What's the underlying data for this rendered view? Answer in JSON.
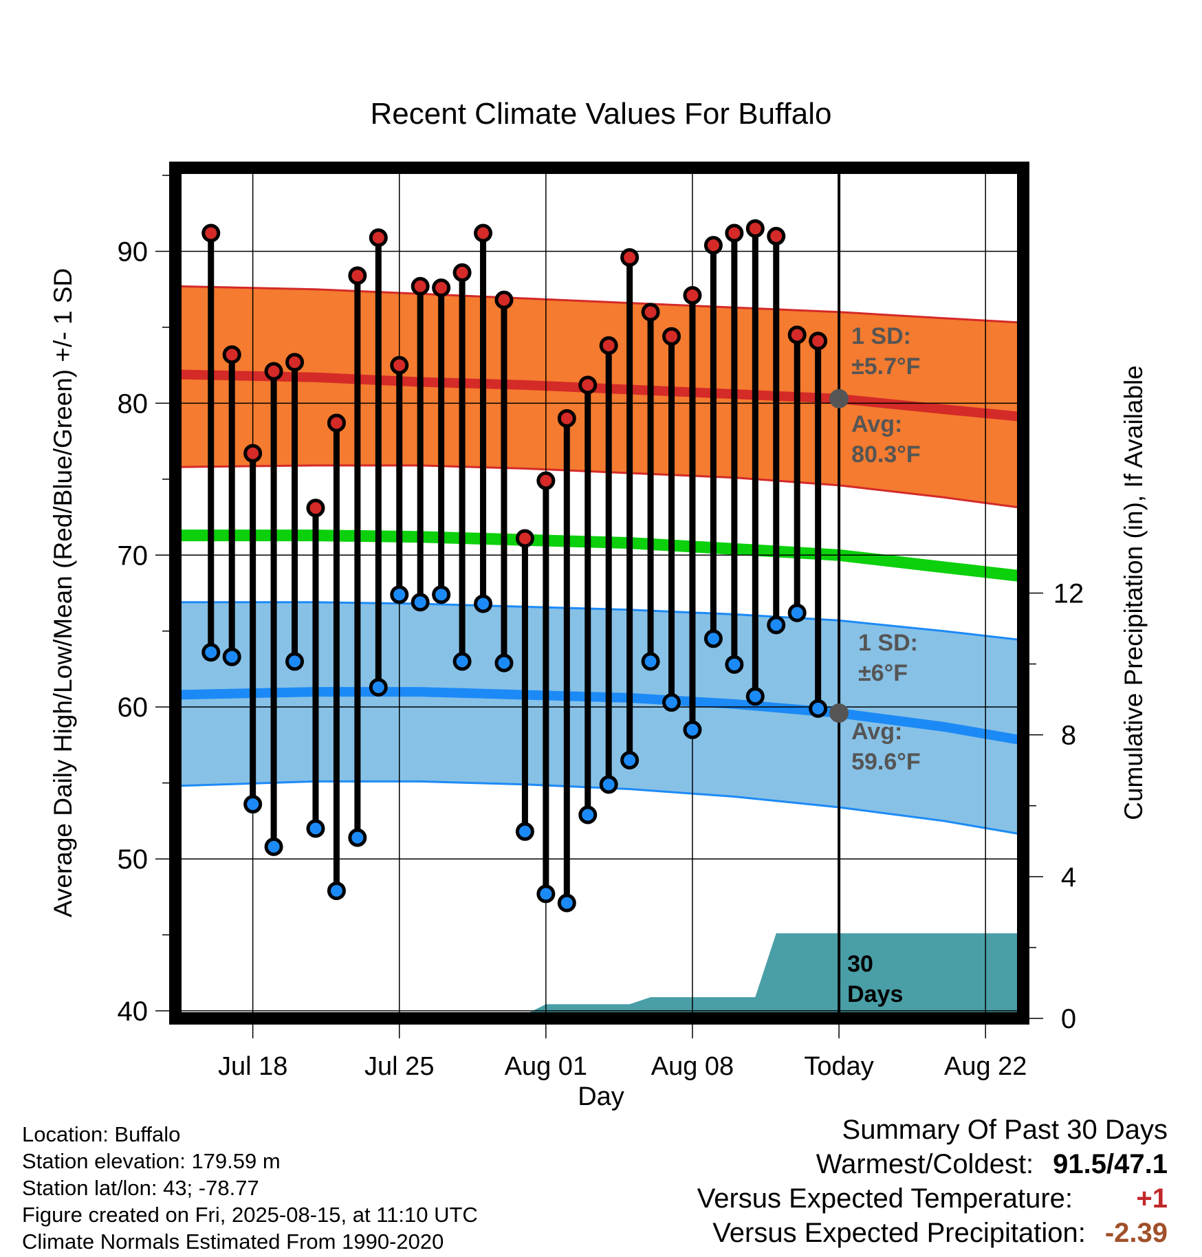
{
  "chart_data": {
    "type": "line",
    "title": "Recent Climate Values For Buffalo",
    "xlabel": "Day",
    "ylabel": "Average Daily High/Low/Mean (Red/Blue/Green) +/- 1 SD",
    "y2label": "Cumulative Precipitation (in), If Available",
    "x_tick_labels": [
      "Jul 18",
      "Jul 25",
      "Aug 01",
      "Aug 08",
      "Today",
      "Aug 22"
    ],
    "x_tick_days": [
      2,
      9,
      16,
      23,
      30,
      37
    ],
    "xlim_days": [
      -1.7,
      38.8
    ],
    "ylim": [
      39.5,
      95.5
    ],
    "y_ticks": [
      40,
      50,
      60,
      70,
      80,
      90
    ],
    "y2lim": [
      0,
      24
    ],
    "y2_ticks": [
      0,
      4,
      8,
      12
    ],
    "today_day": 30,
    "grid": true,
    "daily_highs": [
      91.2,
      83.2,
      76.7,
      82.1,
      82.7,
      73.1,
      78.7,
      88.4,
      90.9,
      82.5,
      87.7,
      87.6,
      88.6,
      91.2,
      86.8,
      71.1,
      74.9,
      79.0,
      81.2,
      83.8,
      89.6,
      86.0,
      84.4,
      87.1,
      90.4,
      91.2,
      91.5,
      91.0,
      84.5,
      84.1
    ],
    "daily_lows": [
      63.6,
      63.3,
      53.6,
      50.8,
      63.0,
      52.0,
      47.9,
      51.4,
      61.3,
      67.4,
      66.9,
      67.4,
      63.0,
      66.8,
      62.9,
      51.8,
      47.7,
      47.1,
      52.9,
      54.9,
      56.5,
      63.0,
      60.3,
      58.5,
      64.5,
      62.8,
      60.7,
      65.4,
      66.2,
      59.9
    ],
    "normal_high": {
      "days": [
        -1.7,
        5,
        10,
        15,
        20,
        25,
        30,
        35,
        38.8
      ],
      "values": [
        81.9,
        81.7,
        81.4,
        81.2,
        80.9,
        80.6,
        80.3,
        79.6,
        79.1
      ]
    },
    "normal_high_upper": {
      "days": [
        -1.7,
        5,
        10,
        15,
        20,
        25,
        30,
        35,
        38.8
      ],
      "values": [
        87.7,
        87.5,
        87.2,
        86.9,
        86.6,
        86.3,
        86.0,
        85.6,
        85.3
      ]
    },
    "normal_high_lower": {
      "days": [
        -1.7,
        5,
        10,
        15,
        20,
        25,
        30,
        35,
        38.8
      ],
      "values": [
        75.8,
        75.9,
        75.9,
        75.7,
        75.4,
        75.1,
        74.6,
        73.8,
        73.1
      ]
    },
    "normal_mean": {
      "days": [
        -1.7,
        5,
        10,
        15,
        20,
        25,
        30,
        35,
        38.8
      ],
      "values": [
        71.3,
        71.3,
        71.2,
        71.0,
        70.8,
        70.4,
        70.0,
        69.2,
        68.6
      ]
    },
    "normal_low": {
      "days": [
        -1.7,
        5,
        10,
        15,
        20,
        25,
        30,
        35,
        38.8
      ],
      "values": [
        60.8,
        61.0,
        61.0,
        60.8,
        60.6,
        60.2,
        59.6,
        58.7,
        57.8
      ]
    },
    "normal_low_upper": {
      "days": [
        -1.7,
        5,
        10,
        15,
        20,
        25,
        30,
        35,
        38.8
      ],
      "values": [
        66.9,
        66.9,
        66.8,
        66.6,
        66.4,
        66.1,
        65.7,
        65.0,
        64.4
      ]
    },
    "normal_low_lower": {
      "days": [
        -1.7,
        5,
        10,
        15,
        20,
        25,
        30,
        35,
        38.8
      ],
      "values": [
        54.8,
        55.1,
        55.1,
        54.9,
        54.6,
        54.1,
        53.4,
        52.5,
        51.6
      ]
    },
    "precip_cumulative": {
      "days": [
        -1.7,
        10,
        13,
        15,
        16,
        20,
        21,
        26,
        27,
        28,
        38.8
      ],
      "values": [
        0.0,
        0.0,
        0.1,
        0.1,
        0.4,
        0.4,
        0.6,
        0.6,
        2.4,
        2.4,
        2.4
      ]
    },
    "colors": {
      "high_band": "#f47b2f",
      "high_line": "#d42a28",
      "low_band": "#87c1e6",
      "low_line": "#1c8af6",
      "mean_line": "#0bd00b",
      "precip": "#4a9ea6",
      "high_marker": "#d42a28",
      "low_marker": "#1c8af6",
      "annotation": "#555555"
    },
    "high_annotation": {
      "sd_label": "1 SD:",
      "sd_value": "±5.7°F",
      "avg_label": "Avg:",
      "avg_value": "80.3°F"
    },
    "low_annotation": {
      "sd_label": "1 SD:",
      "sd_value": "±6°F",
      "avg_label": "Avg:",
      "avg_value": "59.6°F"
    },
    "precip_label": [
      "30",
      "Days"
    ]
  },
  "footer": {
    "location": "Location: Buffalo",
    "elevation": "Station elevation: 179.59 m",
    "latlon": "Station lat/lon: 43; -78.77",
    "created": "Figure created on Fri, 2025-08-15, at 11:10 UTC",
    "normals": "Climate Normals Estimated From 1990-2020"
  },
  "summary": {
    "title": "Summary Of Past 30 Days",
    "warmest_label": "Warmest/Coldest:",
    "warmest_value": "91.5/47.1",
    "temp_label": "Versus Expected Temperature:",
    "temp_value": "+1",
    "temp_color": "#c0282a",
    "precip_label": "Versus Expected Precipitation:",
    "precip_value": "-2.39",
    "precip_color": "#a0502a"
  }
}
